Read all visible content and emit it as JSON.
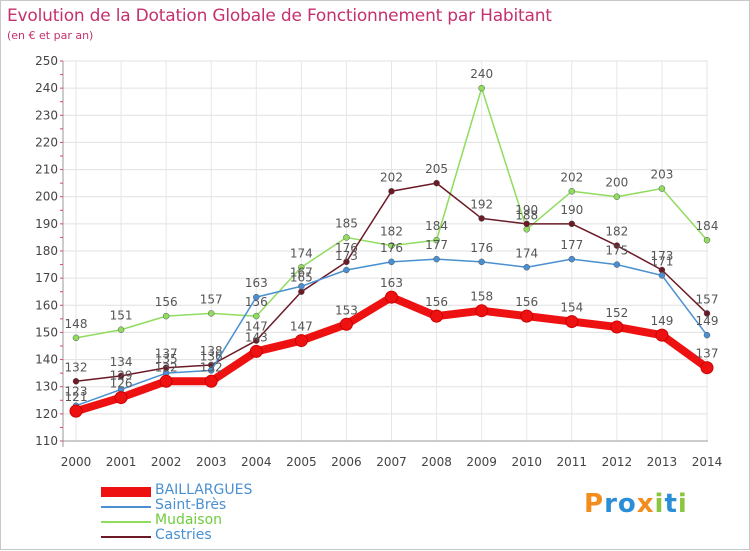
{
  "header": {
    "title": "Evolution de la Dotation Globale de Fonctionnement par Habitant",
    "subtitle": "(en € et par an)"
  },
  "logo": {
    "text": "Proxiti",
    "colors": [
      "#f28c1c",
      "#2a8fd6",
      "#2a8fd6",
      "#f28c1c",
      "#8cc63f",
      "#2a8fd6",
      "#8cc63f"
    ]
  },
  "chart_data": {
    "type": "line",
    "x": [
      2000,
      2001,
      2002,
      2003,
      2004,
      2005,
      2006,
      2007,
      2008,
      2009,
      2010,
      2011,
      2012,
      2013,
      2014
    ],
    "ylim": [
      110,
      250
    ],
    "yticks": [
      110,
      120,
      130,
      140,
      150,
      160,
      170,
      180,
      190,
      200,
      210,
      220,
      230,
      240,
      250
    ],
    "grid": true,
    "legend_position": "bottom-left",
    "series": [
      {
        "name": "Mudaison",
        "color": "#8fdc5e",
        "values": [
          148,
          151,
          156,
          157,
          156,
          174,
          185,
          182,
          184,
          240,
          188,
          202,
          200,
          203,
          184
        ]
      },
      {
        "name": "Castries",
        "color": "#6b1a26",
        "values": [
          132,
          134,
          137,
          138,
          147,
          165,
          176,
          202,
          205,
          192,
          190,
          190,
          182,
          173,
          157
        ]
      },
      {
        "name": "Saint-Brès",
        "color": "#4a90d0",
        "values": [
          123,
          129,
          135,
          136,
          163,
          167,
          173,
          176,
          177,
          176,
          174,
          177,
          175,
          171,
          149
        ]
      },
      {
        "name": "BAILLARGUES",
        "color": "#ee1111",
        "values": [
          121,
          126,
          132,
          132,
          143,
          147,
          153,
          163,
          156,
          158,
          156,
          154,
          152,
          149,
          137
        ]
      }
    ],
    "legend_order": [
      "BAILLARGUES",
      "Saint-Brès",
      "Mudaison",
      "Castries"
    ]
  }
}
